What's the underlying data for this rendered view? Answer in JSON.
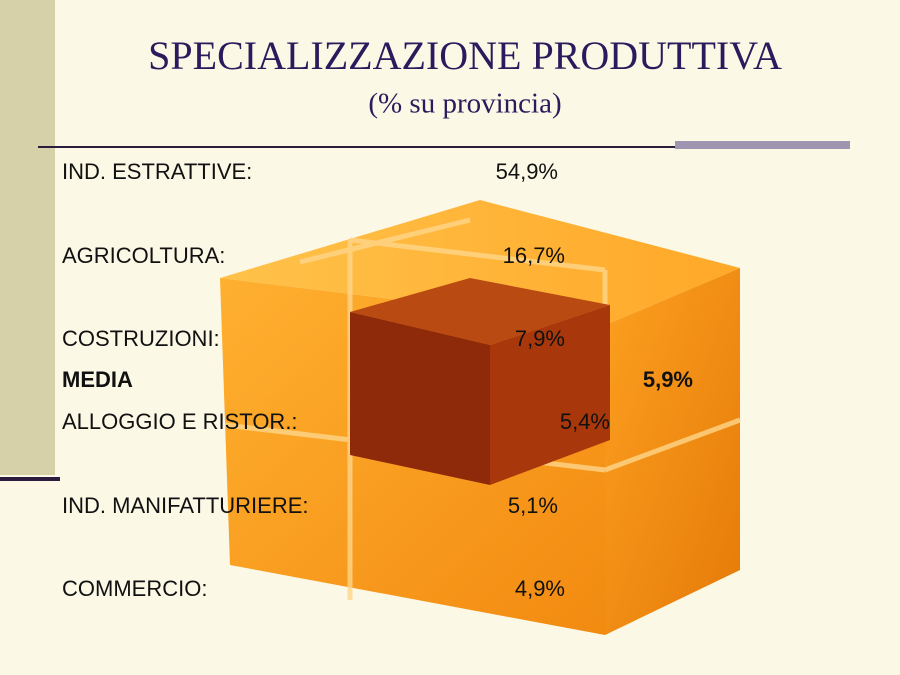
{
  "header": {
    "title": "SPECIALIZZAZIONE PRODUTTIVA",
    "subtitle": "(% su provincia)"
  },
  "rows": [
    {
      "label": "IND. ESTRATTIVE:",
      "value": "54,9%"
    },
    {
      "label": "AGRICOLTURA:",
      "value": "16,7%"
    },
    {
      "label": "COSTRUZIONI:",
      "value": "7,9%"
    },
    {
      "label": "MEDIA",
      "value": "5,9%"
    },
    {
      "label": "ALLOGGIO E RISTOR.:",
      "value": "5,4%"
    },
    {
      "label": "IND. MANIFATTURIERE:",
      "value": "5,1%"
    },
    {
      "label": "COMMERCIO:",
      "value": "4,9%"
    }
  ]
}
